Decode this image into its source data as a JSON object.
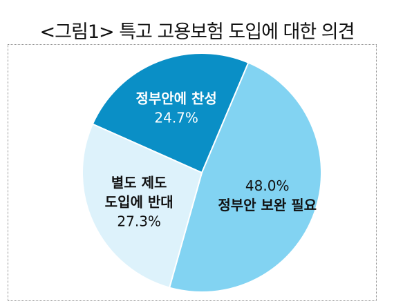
{
  "title": "<그림1> 특고 고용보험 도입에 대한 의견",
  "chart_data": {
    "type": "pie",
    "title": "<그림1> 특고 고용보험 도입에 대한 의견",
    "slices": [
      {
        "label_lines": [
          "정부안에 찬성"
        ],
        "value": 24.7,
        "value_text": "24.7%",
        "color": "#0a8fc6",
        "label_color": "#ffffff"
      },
      {
        "label_lines": [
          "정부안 보완 필요"
        ],
        "value": 48.0,
        "value_text": "48.0%",
        "color": "#82d3f2",
        "label_color": "#111111"
      },
      {
        "label_lines": [
          "별도 제도",
          "도입에 반대"
        ],
        "value": 27.3,
        "value_text": "27.3%",
        "color": "#ddf2fb",
        "label_color": "#111111"
      }
    ]
  }
}
